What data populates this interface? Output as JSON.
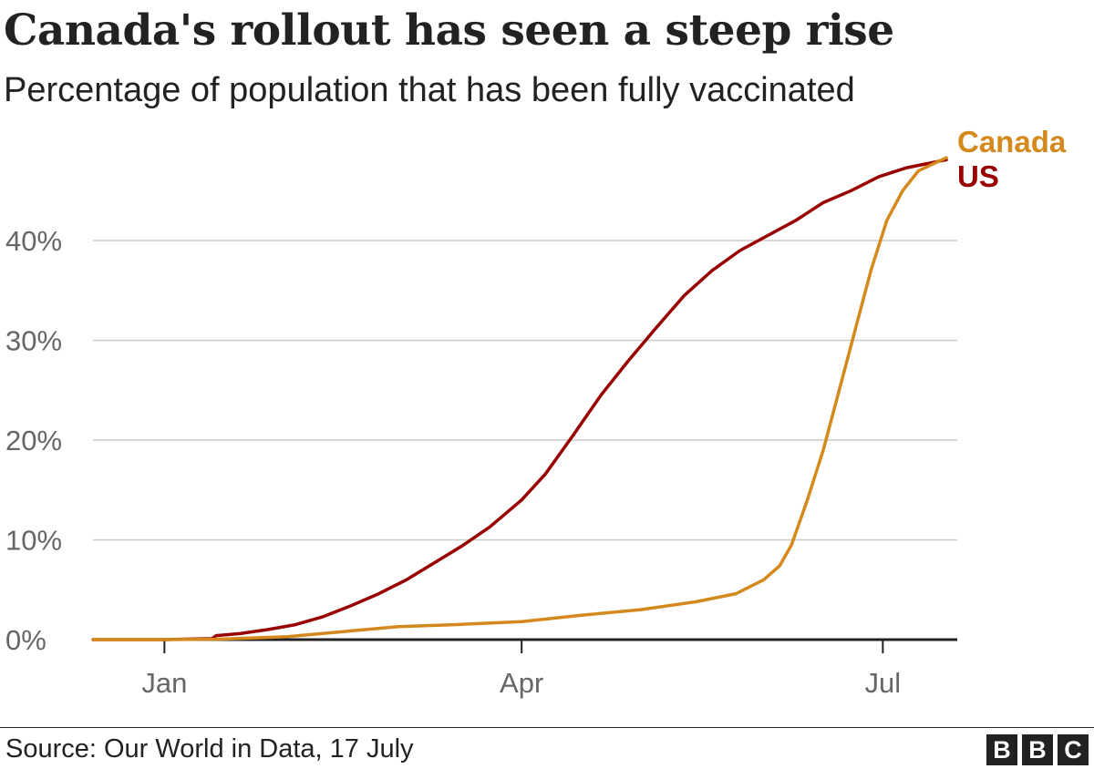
{
  "chart_data": {
    "type": "line",
    "title": "Canada's rollout has seen a steep rise",
    "subtitle": "Percentage of population that has been fully vaccinated",
    "xlabel": "",
    "ylabel": "",
    "x_range": [
      "2020-12-14",
      "2021-07-17"
    ],
    "ylim": [
      0,
      50
    ],
    "y_ticks": [
      {
        "value": 0,
        "label": "0%"
      },
      {
        "value": 10,
        "label": "10%"
      },
      {
        "value": 20,
        "label": "20%"
      },
      {
        "value": 30,
        "label": "30%"
      },
      {
        "value": 40,
        "label": "40%"
      }
    ],
    "x_ticks": [
      {
        "date": "2021-01-01",
        "label": "Jan"
      },
      {
        "date": "2021-04-01",
        "label": "Apr"
      },
      {
        "date": "2021-07-01",
        "label": "Jul"
      }
    ],
    "grid": true,
    "series": [
      {
        "name": "US",
        "color": "#990000",
        "points": [
          [
            "2020-12-14",
            0
          ],
          [
            "2021-01-01",
            0
          ],
          [
            "2021-01-13",
            0.1
          ],
          [
            "2021-01-14",
            0.4
          ],
          [
            "2021-01-20",
            0.6
          ],
          [
            "2021-01-27",
            1.0
          ],
          [
            "2021-02-03",
            1.5
          ],
          [
            "2021-02-10",
            2.3
          ],
          [
            "2021-02-17",
            3.4
          ],
          [
            "2021-02-24",
            4.6
          ],
          [
            "2021-03-03",
            6.0
          ],
          [
            "2021-03-10",
            7.7
          ],
          [
            "2021-03-17",
            9.4
          ],
          [
            "2021-03-24",
            11.3
          ],
          [
            "2021-04-01",
            14.0
          ],
          [
            "2021-04-07",
            16.6
          ],
          [
            "2021-04-14",
            20.5
          ],
          [
            "2021-04-21",
            24.5
          ],
          [
            "2021-04-28",
            28.0
          ],
          [
            "2021-05-05",
            31.3
          ],
          [
            "2021-05-12",
            34.5
          ],
          [
            "2021-05-19",
            37.0
          ],
          [
            "2021-05-26",
            39.0
          ],
          [
            "2021-06-02",
            40.5
          ],
          [
            "2021-06-09",
            42.0
          ],
          [
            "2021-06-16",
            43.8
          ],
          [
            "2021-06-23",
            45.0
          ],
          [
            "2021-06-30",
            46.4
          ],
          [
            "2021-07-07",
            47.3
          ],
          [
            "2021-07-17",
            48.1
          ]
        ]
      },
      {
        "name": "Canada",
        "color": "#d4891c",
        "points": [
          [
            "2020-12-14",
            0
          ],
          [
            "2021-01-01",
            0
          ],
          [
            "2021-01-15",
            0.05
          ],
          [
            "2021-02-01",
            0.3
          ],
          [
            "2021-02-15",
            0.8
          ],
          [
            "2021-03-01",
            1.3
          ],
          [
            "2021-03-15",
            1.5
          ],
          [
            "2021-04-01",
            1.8
          ],
          [
            "2021-04-15",
            2.4
          ],
          [
            "2021-05-01",
            3.0
          ],
          [
            "2021-05-15",
            3.8
          ],
          [
            "2021-05-25",
            4.6
          ],
          [
            "2021-06-01",
            6.0
          ],
          [
            "2021-06-05",
            7.4
          ],
          [
            "2021-06-08",
            9.5
          ],
          [
            "2021-06-12",
            14.0
          ],
          [
            "2021-06-16",
            19.0
          ],
          [
            "2021-06-20",
            25.0
          ],
          [
            "2021-06-24",
            31.0
          ],
          [
            "2021-06-28",
            37.0
          ],
          [
            "2021-07-02",
            42.0
          ],
          [
            "2021-07-06",
            45.0
          ],
          [
            "2021-07-10",
            47.0
          ],
          [
            "2021-07-17",
            48.3
          ]
        ]
      }
    ],
    "legend": "inline labels at line ends, top-right"
  },
  "footer": {
    "source": "Source: Our World in Data, 17 July",
    "logo_letters": [
      "B",
      "B",
      "C"
    ]
  }
}
